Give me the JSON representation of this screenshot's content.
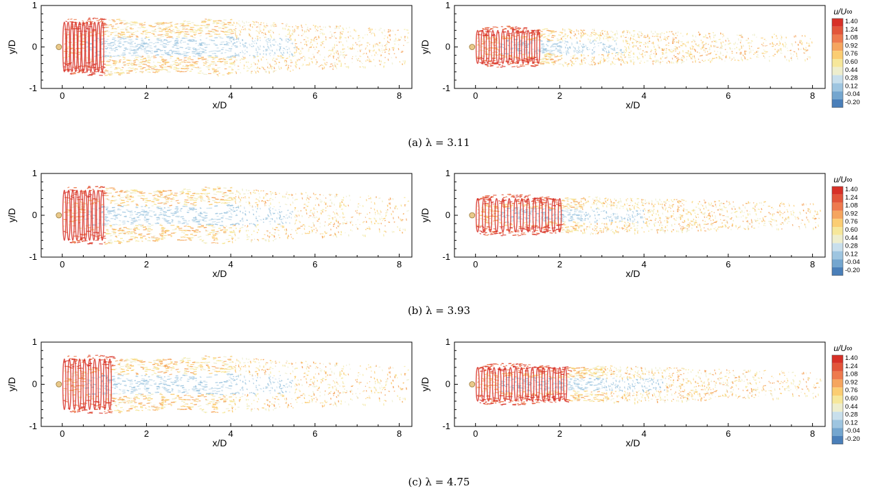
{
  "figure": {
    "rows": [
      {
        "caption": "(a) λ = 3.11"
      },
      {
        "caption": "(b) λ = 3.93"
      },
      {
        "caption": "(c) λ = 4.75"
      }
    ]
  },
  "colorbar": {
    "title": "u/U∞",
    "levels": [
      "1.40",
      "1.24",
      "1.08",
      "0.92",
      "0.76",
      "0.60",
      "0.44",
      "0.28",
      "0.12",
      "-0.04",
      "-0.20"
    ],
    "colors": [
      "#d73027",
      "#e2553a",
      "#ee7a4e",
      "#f5a55f",
      "#fbcd72",
      "#f6e79a",
      "#eeeecd",
      "#c8dfec",
      "#9ec5e0",
      "#74a6cf",
      "#4a7fb9"
    ]
  },
  "chart_data": [
    {
      "type": "scatter",
      "panel": "a-left",
      "xlabel": "x/D",
      "ylabel": "y/D",
      "xlim": [
        -0.5,
        8.3
      ],
      "ylim": [
        -1,
        1
      ],
      "xticks": [
        0,
        2,
        4,
        6,
        8
      ],
      "yticks": [
        -1,
        0,
        1
      ],
      "wake": {
        "dense_until": 4.0,
        "fade_to": 8.2,
        "half_width_near": 0.65,
        "helix_pitch": 0.09,
        "helix_until": 1.0
      }
    },
    {
      "type": "scatter",
      "panel": "a-right",
      "xlabel": "x/D",
      "ylabel": "y/D",
      "xlim": [
        -0.5,
        8.3
      ],
      "ylim": [
        -1,
        1
      ],
      "xticks": [
        0,
        2,
        4,
        6,
        8
      ],
      "yticks": [
        -1,
        0,
        1
      ],
      "wake": {
        "dense_until": 2.0,
        "fade_to": 8.0,
        "half_width_near": 0.45,
        "helix_pitch": 0.12,
        "helix_until": 1.5
      }
    },
    {
      "type": "scatter",
      "panel": "b-left",
      "xlabel": "x/D",
      "ylabel": "y/D",
      "xlim": [
        -0.5,
        8.3
      ],
      "ylim": [
        -1,
        1
      ],
      "xticks": [
        0,
        2,
        4,
        6,
        8
      ],
      "yticks": [
        -1,
        0,
        1
      ],
      "wake": {
        "dense_until": 4.0,
        "fade_to": 8.2,
        "half_width_near": 0.65,
        "helix_pitch": 0.1,
        "helix_until": 1.0
      }
    },
    {
      "type": "scatter",
      "panel": "b-right",
      "xlabel": "x/D",
      "ylabel": "y/D",
      "xlim": [
        -0.5,
        8.3
      ],
      "ylim": [
        -1,
        1
      ],
      "xticks": [
        0,
        2,
        4,
        6,
        8
      ],
      "yticks": [
        -1,
        0,
        1
      ],
      "wake": {
        "dense_until": 2.5,
        "fade_to": 8.2,
        "half_width_near": 0.45,
        "helix_pitch": 0.15,
        "helix_until": 2.0
      }
    },
    {
      "type": "scatter",
      "panel": "c-left",
      "xlabel": "x/D",
      "ylabel": "y/D",
      "xlim": [
        -0.5,
        8.3
      ],
      "ylim": [
        -1,
        1
      ],
      "xticks": [
        0,
        2,
        4,
        6,
        8
      ],
      "yticks": [
        -1,
        0,
        1
      ],
      "wake": {
        "dense_until": 4.0,
        "fade_to": 8.2,
        "half_width_near": 0.65,
        "helix_pitch": 0.12,
        "helix_until": 1.2
      }
    },
    {
      "type": "scatter",
      "panel": "c-right",
      "xlabel": "x/D",
      "ylabel": "y/D",
      "xlim": [
        -0.5,
        8.3
      ],
      "ylim": [
        -1,
        1
      ],
      "xticks": [
        0,
        2,
        4,
        6,
        8
      ],
      "yticks": [
        -1,
        0,
        1
      ],
      "wake": {
        "dense_until": 3.0,
        "fade_to": 8.2,
        "half_width_near": 0.45,
        "helix_pitch": 0.13,
        "helix_until": 2.2
      }
    }
  ]
}
